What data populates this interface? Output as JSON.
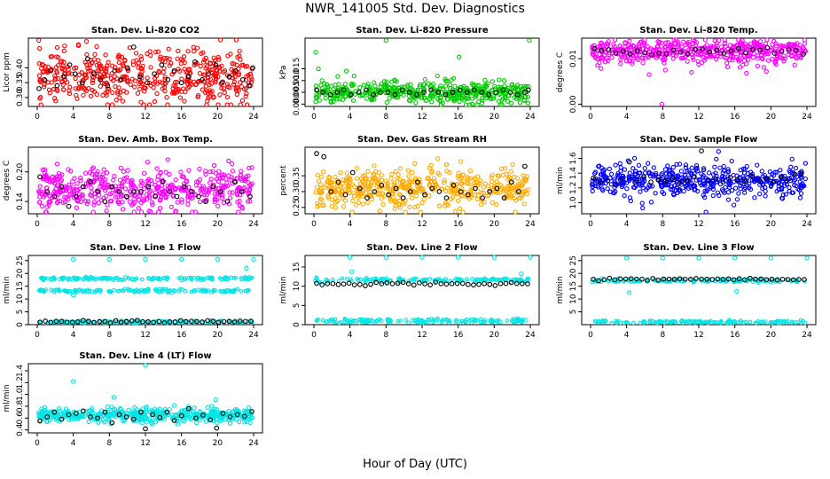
{
  "title": "NWR_141005  Std. Dev. Diagnostics",
  "xlabel": "Hour of Day (UTC)",
  "chart_data": [
    {
      "type": "scatter",
      "title": "Stan. Dev. Li-820 CO2",
      "ylabel": "Licor ppm",
      "ylim": [
        0.27,
        0.5
      ],
      "yticks": [
        0.3,
        0.35,
        0.4
      ],
      "xlim": [
        0,
        24
      ],
      "xticks": [
        0,
        4,
        8,
        12,
        16,
        20,
        24
      ],
      "color": "#ff0000",
      "center": 0.37,
      "spread": 0.045,
      "black_points": [
        [
          0.2,
          0.33
        ],
        [
          0.8,
          0.36
        ],
        [
          1.5,
          0.39
        ],
        [
          2.2,
          0.34
        ],
        [
          3.0,
          0.37
        ],
        [
          3.6,
          0.41
        ],
        [
          4.2,
          0.38
        ],
        [
          5.0,
          0.35
        ],
        [
          5.6,
          0.43
        ],
        [
          6.3,
          0.38
        ],
        [
          7.0,
          0.36
        ],
        [
          7.8,
          0.34
        ],
        [
          8.6,
          0.39
        ],
        [
          9.3,
          0.36
        ],
        [
          10.0,
          0.4
        ],
        [
          10.7,
          0.47
        ],
        [
          11.4,
          0.37
        ],
        [
          12.2,
          0.35
        ],
        [
          13.0,
          0.38
        ],
        [
          13.8,
          0.41
        ],
        [
          14.5,
          0.36
        ],
        [
          15.2,
          0.39
        ],
        [
          16.0,
          0.35
        ],
        [
          16.8,
          0.37
        ],
        [
          17.5,
          0.42
        ],
        [
          18.3,
          0.36
        ],
        [
          19.0,
          0.38
        ],
        [
          19.8,
          0.41
        ],
        [
          20.5,
          0.35
        ],
        [
          21.3,
          0.37
        ],
        [
          22.0,
          0.39
        ],
        [
          22.8,
          0.36
        ],
        [
          23.5,
          0.34
        ],
        [
          23.9,
          0.4
        ]
      ]
    },
    {
      "type": "scatter",
      "title": "Stan. Dev. Li-820 Pressure",
      "ylabel": "kPa",
      "ylim": [
        -0.001,
        0.028
      ],
      "yticks": [
        0.0,
        0.005,
        0.01,
        0.015
      ],
      "xlim": [
        0,
        24
      ],
      "xticks": [
        0,
        4,
        8,
        12,
        16,
        20,
        24
      ],
      "color": "#00cc00",
      "center": 0.005,
      "spread": 0.0022,
      "outliers": [
        [
          0.2,
          0.022
        ],
        [
          0.5,
          0.015
        ],
        [
          0.9,
          0.01
        ],
        [
          3.6,
          0.014
        ],
        [
          8.0,
          0.027
        ],
        [
          13.7,
          0.012
        ],
        [
          15.5,
          0.011
        ],
        [
          16.1,
          0.02
        ],
        [
          21.1,
          0.01
        ],
        [
          23.9,
          0.027
        ]
      ],
      "black_points": [
        [
          0.3,
          0.006
        ],
        [
          1.0,
          0.005
        ],
        [
          1.8,
          0.004
        ],
        [
          2.6,
          0.005
        ],
        [
          3.3,
          0.006
        ],
        [
          4.1,
          0.004
        ],
        [
          5.0,
          0.005
        ],
        [
          5.8,
          0.006
        ],
        [
          6.6,
          0.004
        ],
        [
          7.4,
          0.005
        ],
        [
          8.2,
          0.005
        ],
        [
          9.0,
          0.004
        ],
        [
          9.8,
          0.006
        ],
        [
          10.6,
          0.005
        ],
        [
          11.4,
          0.004
        ],
        [
          12.2,
          0.005
        ],
        [
          13.0,
          0.006
        ],
        [
          13.8,
          0.005
        ],
        [
          14.6,
          0.004
        ],
        [
          15.4,
          0.005
        ],
        [
          16.2,
          0.006
        ],
        [
          17.0,
          0.005
        ],
        [
          17.8,
          0.006
        ],
        [
          18.6,
          0.005
        ],
        [
          19.4,
          0.004
        ],
        [
          20.2,
          0.005
        ],
        [
          21.0,
          0.006
        ],
        [
          21.8,
          0.005
        ],
        [
          22.6,
          0.004
        ],
        [
          23.4,
          0.005
        ],
        [
          23.8,
          0.006
        ]
      ]
    },
    {
      "type": "scatter",
      "title": "Stan. Dev. Li-820 Temp.",
      "ylabel": "degrees C",
      "ylim": [
        -0.0005,
        0.0145
      ],
      "yticks": [
        0.0,
        0.01
      ],
      "xlim": [
        0,
        24
      ],
      "xticks": [
        0,
        4,
        8,
        12,
        16,
        20,
        24
      ],
      "color": "#ff00ff",
      "center": 0.0115,
      "spread": 0.0013,
      "outliers": [
        [
          7.9,
          0.0
        ],
        [
          6.5,
          0.0065
        ],
        [
          17.3,
          0.0068
        ],
        [
          8.3,
          0.0075
        ],
        [
          11.2,
          0.007
        ],
        [
          19.5,
          0.0072
        ],
        [
          15.2,
          0.0082
        ]
      ],
      "black_points": [
        [
          0.4,
          0.0122
        ],
        [
          1.2,
          0.0118
        ],
        [
          2.0,
          0.012
        ],
        [
          2.8,
          0.0112
        ],
        [
          3.6,
          0.0116
        ],
        [
          4.4,
          0.011
        ],
        [
          5.2,
          0.0117
        ],
        [
          6.0,
          0.0113
        ],
        [
          6.8,
          0.0108
        ],
        [
          7.6,
          0.0112
        ],
        [
          8.4,
          0.011
        ],
        [
          9.2,
          0.0119
        ],
        [
          10.0,
          0.0114
        ],
        [
          10.8,
          0.011
        ],
        [
          11.6,
          0.012
        ],
        [
          12.4,
          0.0121
        ],
        [
          13.2,
          0.0115
        ],
        [
          14.0,
          0.0118
        ],
        [
          14.8,
          0.0112
        ],
        [
          15.6,
          0.0117
        ],
        [
          16.4,
          0.0122
        ],
        [
          17.2,
          0.0113
        ],
        [
          18.0,
          0.012
        ],
        [
          18.8,
          0.0119
        ],
        [
          19.6,
          0.0124
        ],
        [
          20.4,
          0.0112
        ],
        [
          21.2,
          0.0116
        ],
        [
          22.0,
          0.012
        ],
        [
          22.8,
          0.0118
        ],
        [
          23.6,
          0.011
        ]
      ]
    },
    {
      "type": "scatter",
      "title": "Stan. Dev. Amb. Box Temp.",
      "ylabel": "degrees C",
      "ylim": [
        0.115,
        0.25
      ],
      "yticks": [
        0.14,
        0.2
      ],
      "xlim": [
        0,
        24
      ],
      "xticks": [
        0,
        4,
        8,
        12,
        16,
        20,
        24
      ],
      "color": "#ff00ff",
      "center": 0.165,
      "spread": 0.022,
      "black_points": [
        [
          0.3,
          0.19
        ],
        [
          1.1,
          0.16
        ],
        [
          1.9,
          0.15
        ],
        [
          2.7,
          0.17
        ],
        [
          3.5,
          0.13
        ],
        [
          4.3,
          0.15
        ],
        [
          5.1,
          0.17
        ],
        [
          5.9,
          0.18
        ],
        [
          6.7,
          0.16
        ],
        [
          7.5,
          0.14
        ],
        [
          8.3,
          0.17
        ],
        [
          9.1,
          0.16
        ],
        [
          9.9,
          0.15
        ],
        [
          10.7,
          0.16
        ],
        [
          11.5,
          0.16
        ],
        [
          12.3,
          0.17
        ],
        [
          13.1,
          0.15
        ],
        [
          13.9,
          0.18
        ],
        [
          14.7,
          0.16
        ],
        [
          15.5,
          0.15
        ],
        [
          16.3,
          0.17
        ],
        [
          17.1,
          0.16
        ],
        [
          17.9,
          0.15
        ],
        [
          18.7,
          0.14
        ],
        [
          19.5,
          0.17
        ],
        [
          20.3,
          0.16
        ],
        [
          21.1,
          0.14
        ],
        [
          21.9,
          0.18
        ],
        [
          22.7,
          0.16
        ],
        [
          23.6,
          0.15
        ]
      ]
    },
    {
      "type": "scatter",
      "title": "Stan. Dev. Gas Stream RH",
      "ylabel": "percent",
      "ylim": [
        0.23,
        0.44
      ],
      "yticks": [
        0.25,
        0.3,
        0.35
      ],
      "xlim": [
        0,
        24
      ],
      "xticks": [
        0,
        4,
        8,
        12,
        16,
        20,
        24
      ],
      "color": "#ffaa00",
      "center": 0.31,
      "spread": 0.03,
      "black_points": [
        [
          0.3,
          0.42
        ],
        [
          1.1,
          0.41
        ],
        [
          1.9,
          0.3
        ],
        [
          2.7,
          0.33
        ],
        [
          3.5,
          0.29
        ],
        [
          4.3,
          0.36
        ],
        [
          5.1,
          0.31
        ],
        [
          5.9,
          0.28
        ],
        [
          6.7,
          0.3
        ],
        [
          7.5,
          0.32
        ],
        [
          8.3,
          0.29
        ],
        [
          9.1,
          0.31
        ],
        [
          9.9,
          0.28
        ],
        [
          10.7,
          0.3
        ],
        [
          11.5,
          0.33
        ],
        [
          12.3,
          0.29
        ],
        [
          13.1,
          0.31
        ],
        [
          13.9,
          0.3
        ],
        [
          14.7,
          0.28
        ],
        [
          15.5,
          0.32
        ],
        [
          16.3,
          0.3
        ],
        [
          17.1,
          0.29
        ],
        [
          17.9,
          0.31
        ],
        [
          18.7,
          0.28
        ],
        [
          19.5,
          0.3
        ],
        [
          20.3,
          0.31
        ],
        [
          21.1,
          0.28
        ],
        [
          21.9,
          0.33
        ],
        [
          22.7,
          0.3
        ],
        [
          23.4,
          0.38
        ]
      ]
    },
    {
      "type": "scatter",
      "title": "Stan. Dev. Sample Flow",
      "ylabel": "ml/min",
      "ylim": [
        0.85,
        1.75
      ],
      "yticks": [
        1.0,
        1.2,
        1.4,
        1.6
      ],
      "xlim": [
        0,
        24
      ],
      "xticks": [
        0,
        4,
        8,
        12,
        16,
        20,
        24
      ],
      "color": "#0000ff",
      "center": 1.3,
      "spread": 0.11,
      "outliers": [
        [
          12.8,
          0.87
        ]
      ],
      "black_points": [
        [
          0.3,
          1.33
        ],
        [
          1.1,
          1.28
        ],
        [
          1.9,
          1.3
        ],
        [
          2.7,
          1.25
        ],
        [
          3.5,
          1.32
        ],
        [
          4.3,
          1.55
        ],
        [
          5.1,
          1.3
        ],
        [
          5.9,
          1.35
        ],
        [
          6.7,
          1.28
        ],
        [
          7.5,
          1.31
        ],
        [
          8.3,
          1.29
        ],
        [
          9.1,
          1.33
        ],
        [
          9.9,
          1.27
        ],
        [
          10.7,
          1.3
        ],
        [
          11.5,
          1.35
        ],
        [
          12.3,
          1.7
        ],
        [
          13.1,
          1.3
        ],
        [
          13.9,
          1.32
        ],
        [
          14.7,
          1.28
        ],
        [
          15.5,
          1.34
        ],
        [
          16.3,
          1.31
        ],
        [
          17.1,
          1.29
        ],
        [
          17.9,
          1.36
        ],
        [
          18.7,
          1.3
        ],
        [
          19.5,
          1.33
        ],
        [
          20.3,
          1.28
        ],
        [
          21.1,
          1.35
        ],
        [
          21.9,
          1.32
        ],
        [
          22.7,
          1.38
        ],
        [
          23.4,
          1.4
        ]
      ]
    },
    {
      "type": "scatter",
      "title": "Stan. Dev. Line 1 Flow",
      "ylabel": "ml/min",
      "ylim": [
        0,
        27
      ],
      "yticks": [
        0,
        5,
        10,
        15,
        20,
        25
      ],
      "xlim": [
        0,
        24
      ],
      "xticks": [
        0,
        4,
        8,
        12,
        16,
        20,
        24
      ],
      "color": "#00e5e5",
      "bands": [
        18.0,
        13.2,
        1.0
      ],
      "band_spread": 0.5,
      "black_level": 1.2,
      "outliers": [
        [
          4.0,
          25.5
        ],
        [
          8.0,
          25.5
        ],
        [
          12.0,
          25.5
        ],
        [
          16.0,
          25.5
        ],
        [
          20.0,
          25.5
        ],
        [
          24.0,
          25.5
        ],
        [
          4.0,
          11.5
        ],
        [
          23.2,
          22
        ]
      ]
    },
    {
      "type": "scatter",
      "title": "Stan. Dev. Line 2 Flow",
      "ylabel": "ml/min",
      "ylim": [
        0,
        18
      ],
      "yticks": [
        0,
        5,
        10,
        15
      ],
      "xlim": [
        0,
        24
      ],
      "xticks": [
        0,
        4,
        8,
        12,
        16,
        20,
        24
      ],
      "color": "#00e5e5",
      "bands": [
        11.6,
        1.0
      ],
      "band_spread": 0.45,
      "black_level": 10.6,
      "outliers": [
        [
          4.0,
          17.5
        ],
        [
          8.0,
          17.5
        ],
        [
          12.0,
          17.5
        ],
        [
          16.0,
          17.5
        ],
        [
          20.0,
          17.5
        ],
        [
          24.0,
          17.5
        ],
        [
          4.2,
          13.8
        ],
        [
          23.0,
          13.2
        ]
      ]
    },
    {
      "type": "scatter",
      "title": "Stan. Dev. Line 3 Flow",
      "ylabel": "ml/min",
      "ylim": [
        0,
        27
      ],
      "yticks": [
        5,
        10,
        15,
        20,
        25
      ],
      "xlim": [
        0,
        24
      ],
      "xticks": [
        0,
        4,
        8,
        12,
        16,
        20,
        24
      ],
      "color": "#00e5e5",
      "bands": [
        17.2,
        1.0
      ],
      "band_spread": 0.5,
      "black_level": 17.8,
      "outliers": [
        [
          4.0,
          26.0
        ],
        [
          8.0,
          26.0
        ],
        [
          12.0,
          26.0
        ],
        [
          16.0,
          26.0
        ],
        [
          20.0,
          26.0
        ],
        [
          24.0,
          26.0
        ],
        [
          4.3,
          12.5
        ],
        [
          16.2,
          13.0
        ]
      ]
    },
    {
      "type": "scatter",
      "title": "Stan. Dev. Line 4 (LT) Flow",
      "ylabel": "ml/min",
      "ylim": [
        0.35,
        1.52
      ],
      "yticks": [
        0.4,
        0.6,
        0.8,
        1.0,
        1.2,
        1.4
      ],
      "xlim": [
        0,
        24
      ],
      "xticks": [
        0,
        4,
        8,
        12,
        16,
        20,
        24
      ],
      "color": "#00e5e5",
      "center": 0.65,
      "spread": 0.055,
      "outliers": [
        [
          4.0,
          1.22
        ],
        [
          12.0,
          1.49
        ],
        [
          19.8,
          0.91
        ],
        [
          8.5,
          0.95
        ],
        [
          15.6,
          0.5
        ]
      ],
      "black_points": [
        [
          0.3,
          0.55
        ],
        [
          1.1,
          0.62
        ],
        [
          1.9,
          0.7
        ],
        [
          2.7,
          0.58
        ],
        [
          3.5,
          0.66
        ],
        [
          4.3,
          0.68
        ],
        [
          5.1,
          0.72
        ],
        [
          5.9,
          0.62
        ],
        [
          6.7,
          0.6
        ],
        [
          7.5,
          0.7
        ],
        [
          8.3,
          0.52
        ],
        [
          9.1,
          0.66
        ],
        [
          9.9,
          0.62
        ],
        [
          10.7,
          0.58
        ],
        [
          11.5,
          0.7
        ],
        [
          12.0,
          0.42
        ],
        [
          12.8,
          0.66
        ],
        [
          13.6,
          0.61
        ],
        [
          14.4,
          0.7
        ],
        [
          15.2,
          0.56
        ],
        [
          16.0,
          0.64
        ],
        [
          16.8,
          0.76
        ],
        [
          17.6,
          0.6
        ],
        [
          18.4,
          0.65
        ],
        [
          19.2,
          0.57
        ],
        [
          19.9,
          0.43
        ],
        [
          20.6,
          0.68
        ],
        [
          21.4,
          0.62
        ],
        [
          22.2,
          0.66
        ],
        [
          23.0,
          0.63
        ],
        [
          23.8,
          0.71
        ]
      ]
    }
  ]
}
